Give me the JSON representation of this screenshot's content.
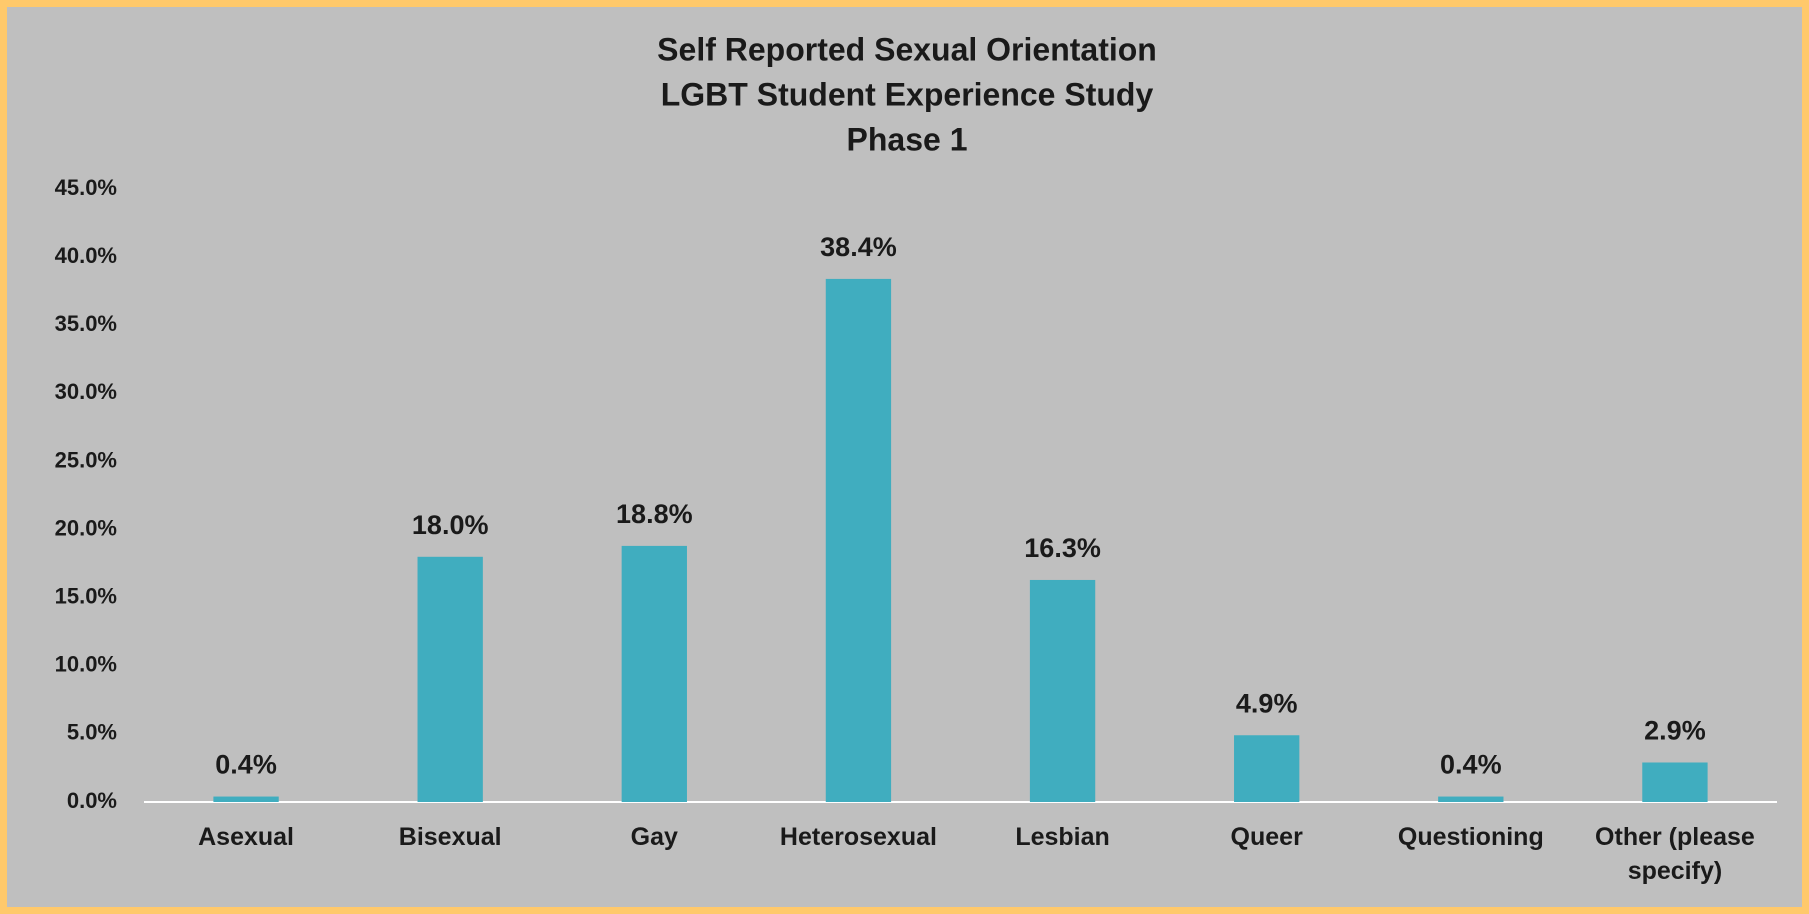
{
  "chart_data": {
    "type": "bar",
    "title": [
      "Self Reported Sexual Orientation",
      "LGBT Student Experience Study",
      "Phase 1"
    ],
    "categories": [
      "Asexual",
      "Bisexual",
      "Gay",
      "Heterosexual",
      "Lesbian",
      "Queer",
      "Questioning",
      "Other (please specify)"
    ],
    "values": [
      0.4,
      18.0,
      18.8,
      38.4,
      16.3,
      4.9,
      0.4,
      2.9
    ],
    "value_labels": [
      "0.4%",
      "18.0%",
      "18.8%",
      "38.4%",
      "16.3%",
      "4.9%",
      "0.4%",
      "2.9%"
    ],
    "color": "#40adbf",
    "ylim": [
      0,
      45
    ],
    "yticks": [
      {
        "value": 0,
        "label": "0.0%"
      },
      {
        "value": 5,
        "label": "5.0%"
      },
      {
        "value": 10,
        "label": "10.0%"
      },
      {
        "value": 15,
        "label": "15.0%"
      },
      {
        "value": 20,
        "label": "20.0%"
      },
      {
        "value": 25,
        "label": "25.0%"
      },
      {
        "value": 30,
        "label": "30.0%"
      },
      {
        "value": 35,
        "label": "35.0%"
      },
      {
        "value": 40,
        "label": "40.0%"
      },
      {
        "value": 45,
        "label": "45.0%"
      }
    ],
    "grid": false
  }
}
